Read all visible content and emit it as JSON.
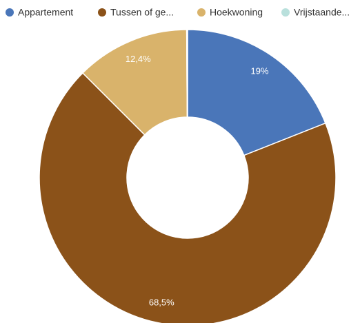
{
  "chart_data": {
    "type": "pie",
    "categories": [
      "Appartement",
      "Tussen of ge...",
      "Hoekwoning",
      "Vrijstaande..."
    ],
    "values": [
      19,
      68.5,
      12.4,
      0.1
    ],
    "value_labels": [
      "19%",
      "68,5%",
      "12,4%",
      null
    ],
    "colors": [
      "#4a76b9",
      "#8b5219",
      "#d9b36b",
      "#b9e0dc"
    ],
    "donut": true
  }
}
